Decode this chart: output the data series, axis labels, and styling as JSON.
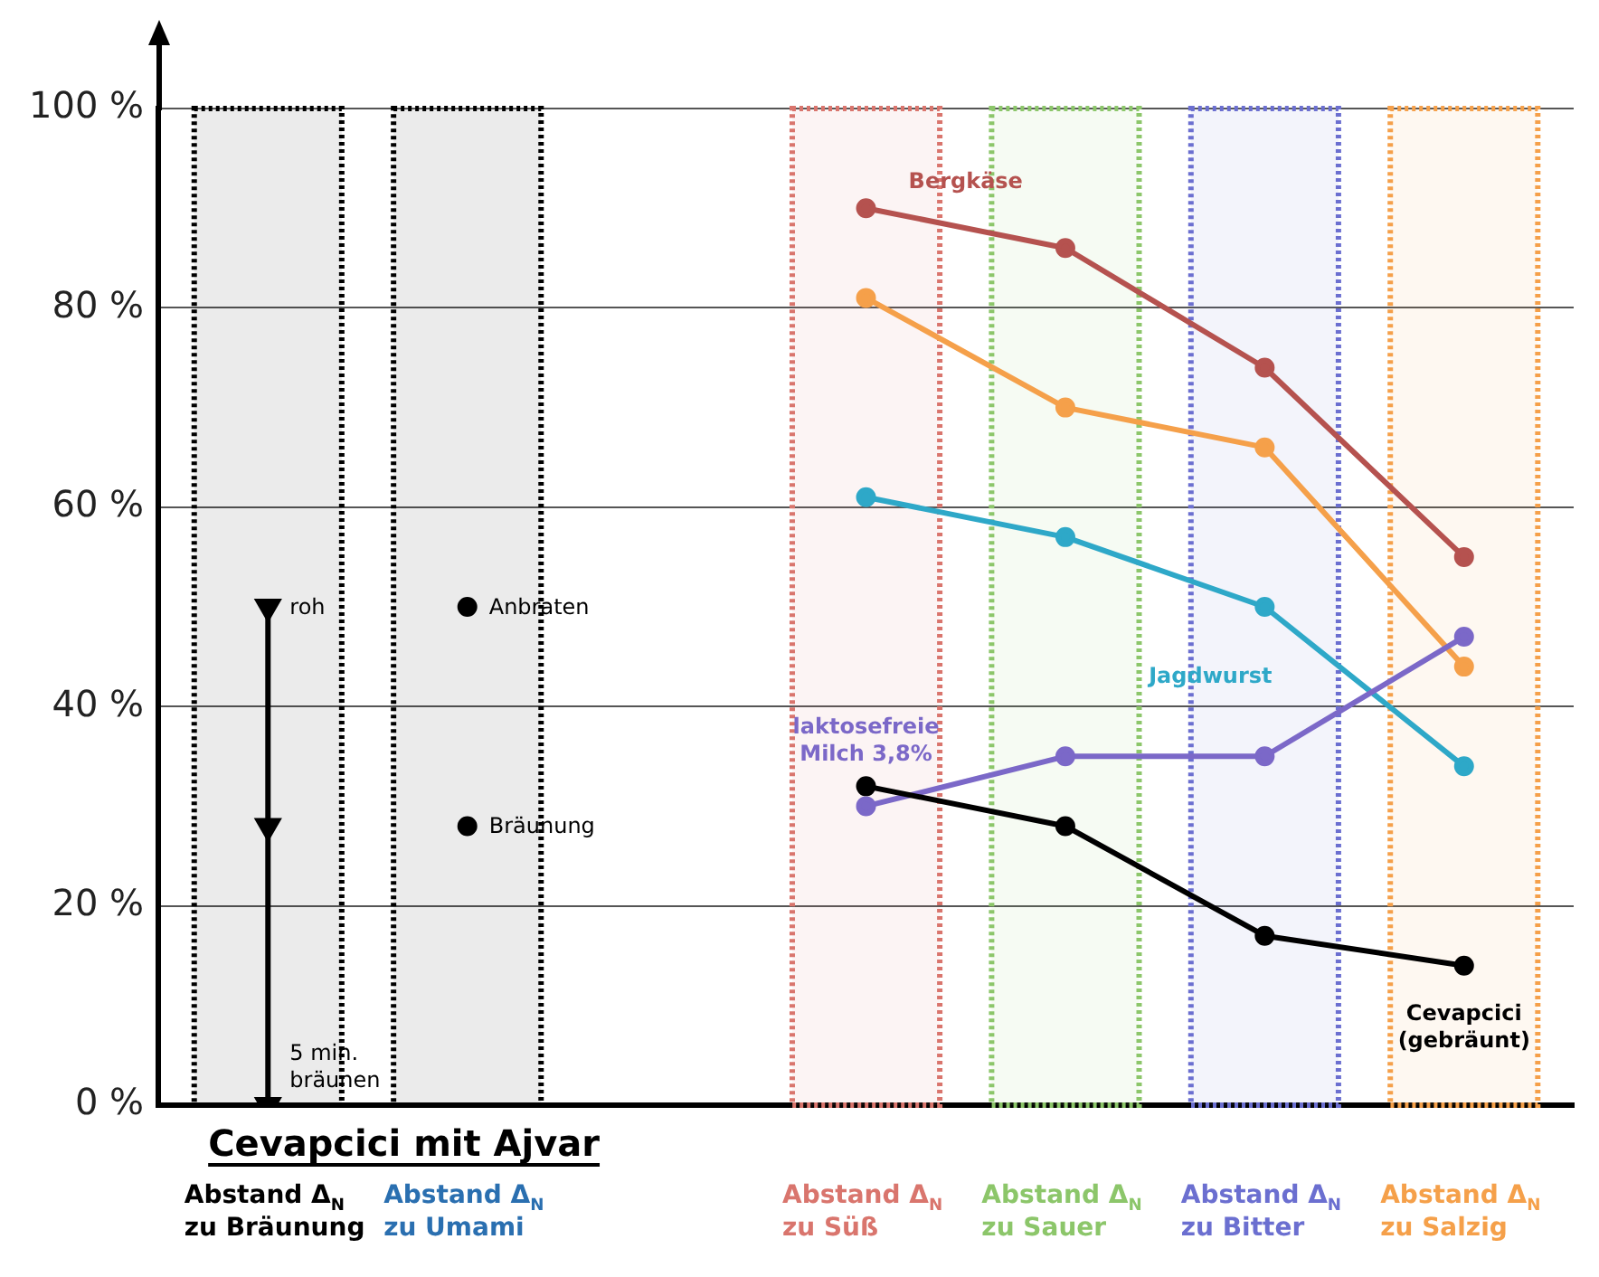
{
  "chart_data": {
    "type": "line",
    "xlabel": "Cevapcici mit Ajvar",
    "categories": [
      "Abstand Δ$_{N}$ zu Bräunung",
      "Abstand Δ$_{N}$ zu Umami",
      null,
      "Abstand Δ$_{N}$ zu Süß",
      "Abstand Δ$_{N}$ zu Sauer",
      "Abstand Δ$_{N}$ zu Bitter",
      "Abstand Δ$_{N}$ zu Salzig"
    ],
    "series": [
      {
        "type": "line",
        "color": "#000000",
        "x": [
          "Abstand Δ$_{N}$ zu Bräunung",
          "Abstand Δ$_{N}$ zu Bräunung",
          "Abstand Δ$_{N}$ zu Bräunung"
        ],
        "values": [
          50,
          28,
          0
        ],
        "marker": "triangle"
      },
      {
        "type": "scatter",
        "color": "#000000",
        "x": [
          "Abstand Δ$_{N}$ zu Umami",
          "Abstand Δ$_{N}$ zu Umami"
        ],
        "values": [
          50,
          28
        ]
      },
      {
        "name": "Bergkäse",
        "color": "#b5524f",
        "values": [
          null,
          null,
          null,
          90,
          86,
          74,
          55
        ]
      },
      {
        "color": "#f5a04a",
        "values": [
          null,
          null,
          null,
          81,
          70,
          66,
          44
        ]
      },
      {
        "name": "Jagdwurst",
        "color": "#2ea8c8",
        "values": [
          null,
          null,
          null,
          61,
          57,
          50,
          34
        ]
      },
      {
        "name": "laktosefreie Milch 3,8%",
        "color": "#7b68c8",
        "values": [
          null,
          null,
          null,
          30,
          35,
          35,
          47
        ]
      },
      {
        "name": "Cevapcici (gebräunt)",
        "color": "#000000",
        "values": [
          null,
          null,
          null,
          32,
          28,
          17,
          14
        ]
      }
    ],
    "annotations": [
      {
        "text": "roh",
        "x": "Abstand Δ$_{N}$ zu Bräunung",
        "y": 50
      },
      {
        "text": "5 min. bräunen",
        "x": "Abstand Δ$_{N}$ zu Bräunung",
        "y": 0
      },
      {
        "text": "Anbraten",
        "x": "Abstand Δ$_{N}$ zu Umami",
        "y": 50
      },
      {
        "text": "Bräunung",
        "x": "Abstand Δ$_{N}$ zu Umami",
        "y": 28
      }
    ],
    "bands": [
      {
        "axis": "x",
        "from": "Abstand Δ$_{N}$ zu Bräunung",
        "to": "Abstand Δ$_{N}$ zu Bräunung",
        "color": "#000000"
      },
      {
        "axis": "x",
        "from": "Abstand Δ$_{N}$ zu Umami",
        "to": "Abstand Δ$_{N}$ zu Umami",
        "color": "#000000"
      },
      {
        "axis": "x",
        "from": "Abstand Δ$_{N}$ zu Süß",
        "to": "Abstand Δ$_{N}$ zu Süß",
        "color": "#d9756d"
      },
      {
        "axis": "x",
        "from": "Abstand Δ$_{N}$ zu Sauer",
        "to": "Abstand Δ$_{N}$ zu Sauer",
        "color": "#8cc66a"
      },
      {
        "axis": "x",
        "from": "Abstand Δ$_{N}$ zu Bitter",
        "to": "Abstand Δ$_{N}$ zu Bitter",
        "color": "#6b6fd0"
      },
      {
        "axis": "x",
        "from": "Abstand Δ$_{N}$ zu Salzig",
        "to": "Abstand Δ$_{N}$ zu Salzig",
        "color": "#f5a04a"
      }
    ],
    "ylim": [
      0,
      100
    ],
    "yticks": [
      {
        "value": 0,
        "label": "0 %"
      },
      {
        "value": 20,
        "label": "20 %"
      },
      {
        "value": 40,
        "label": "40 %"
      },
      {
        "value": 60,
        "label": "60 %"
      },
      {
        "value": 80,
        "label": "80 %"
      },
      {
        "value": 100,
        "label": "100 %"
      }
    ],
    "grid": "y",
    "legend": false,
    "marker": "circle",
    "line_style": "solid"
  }
}
